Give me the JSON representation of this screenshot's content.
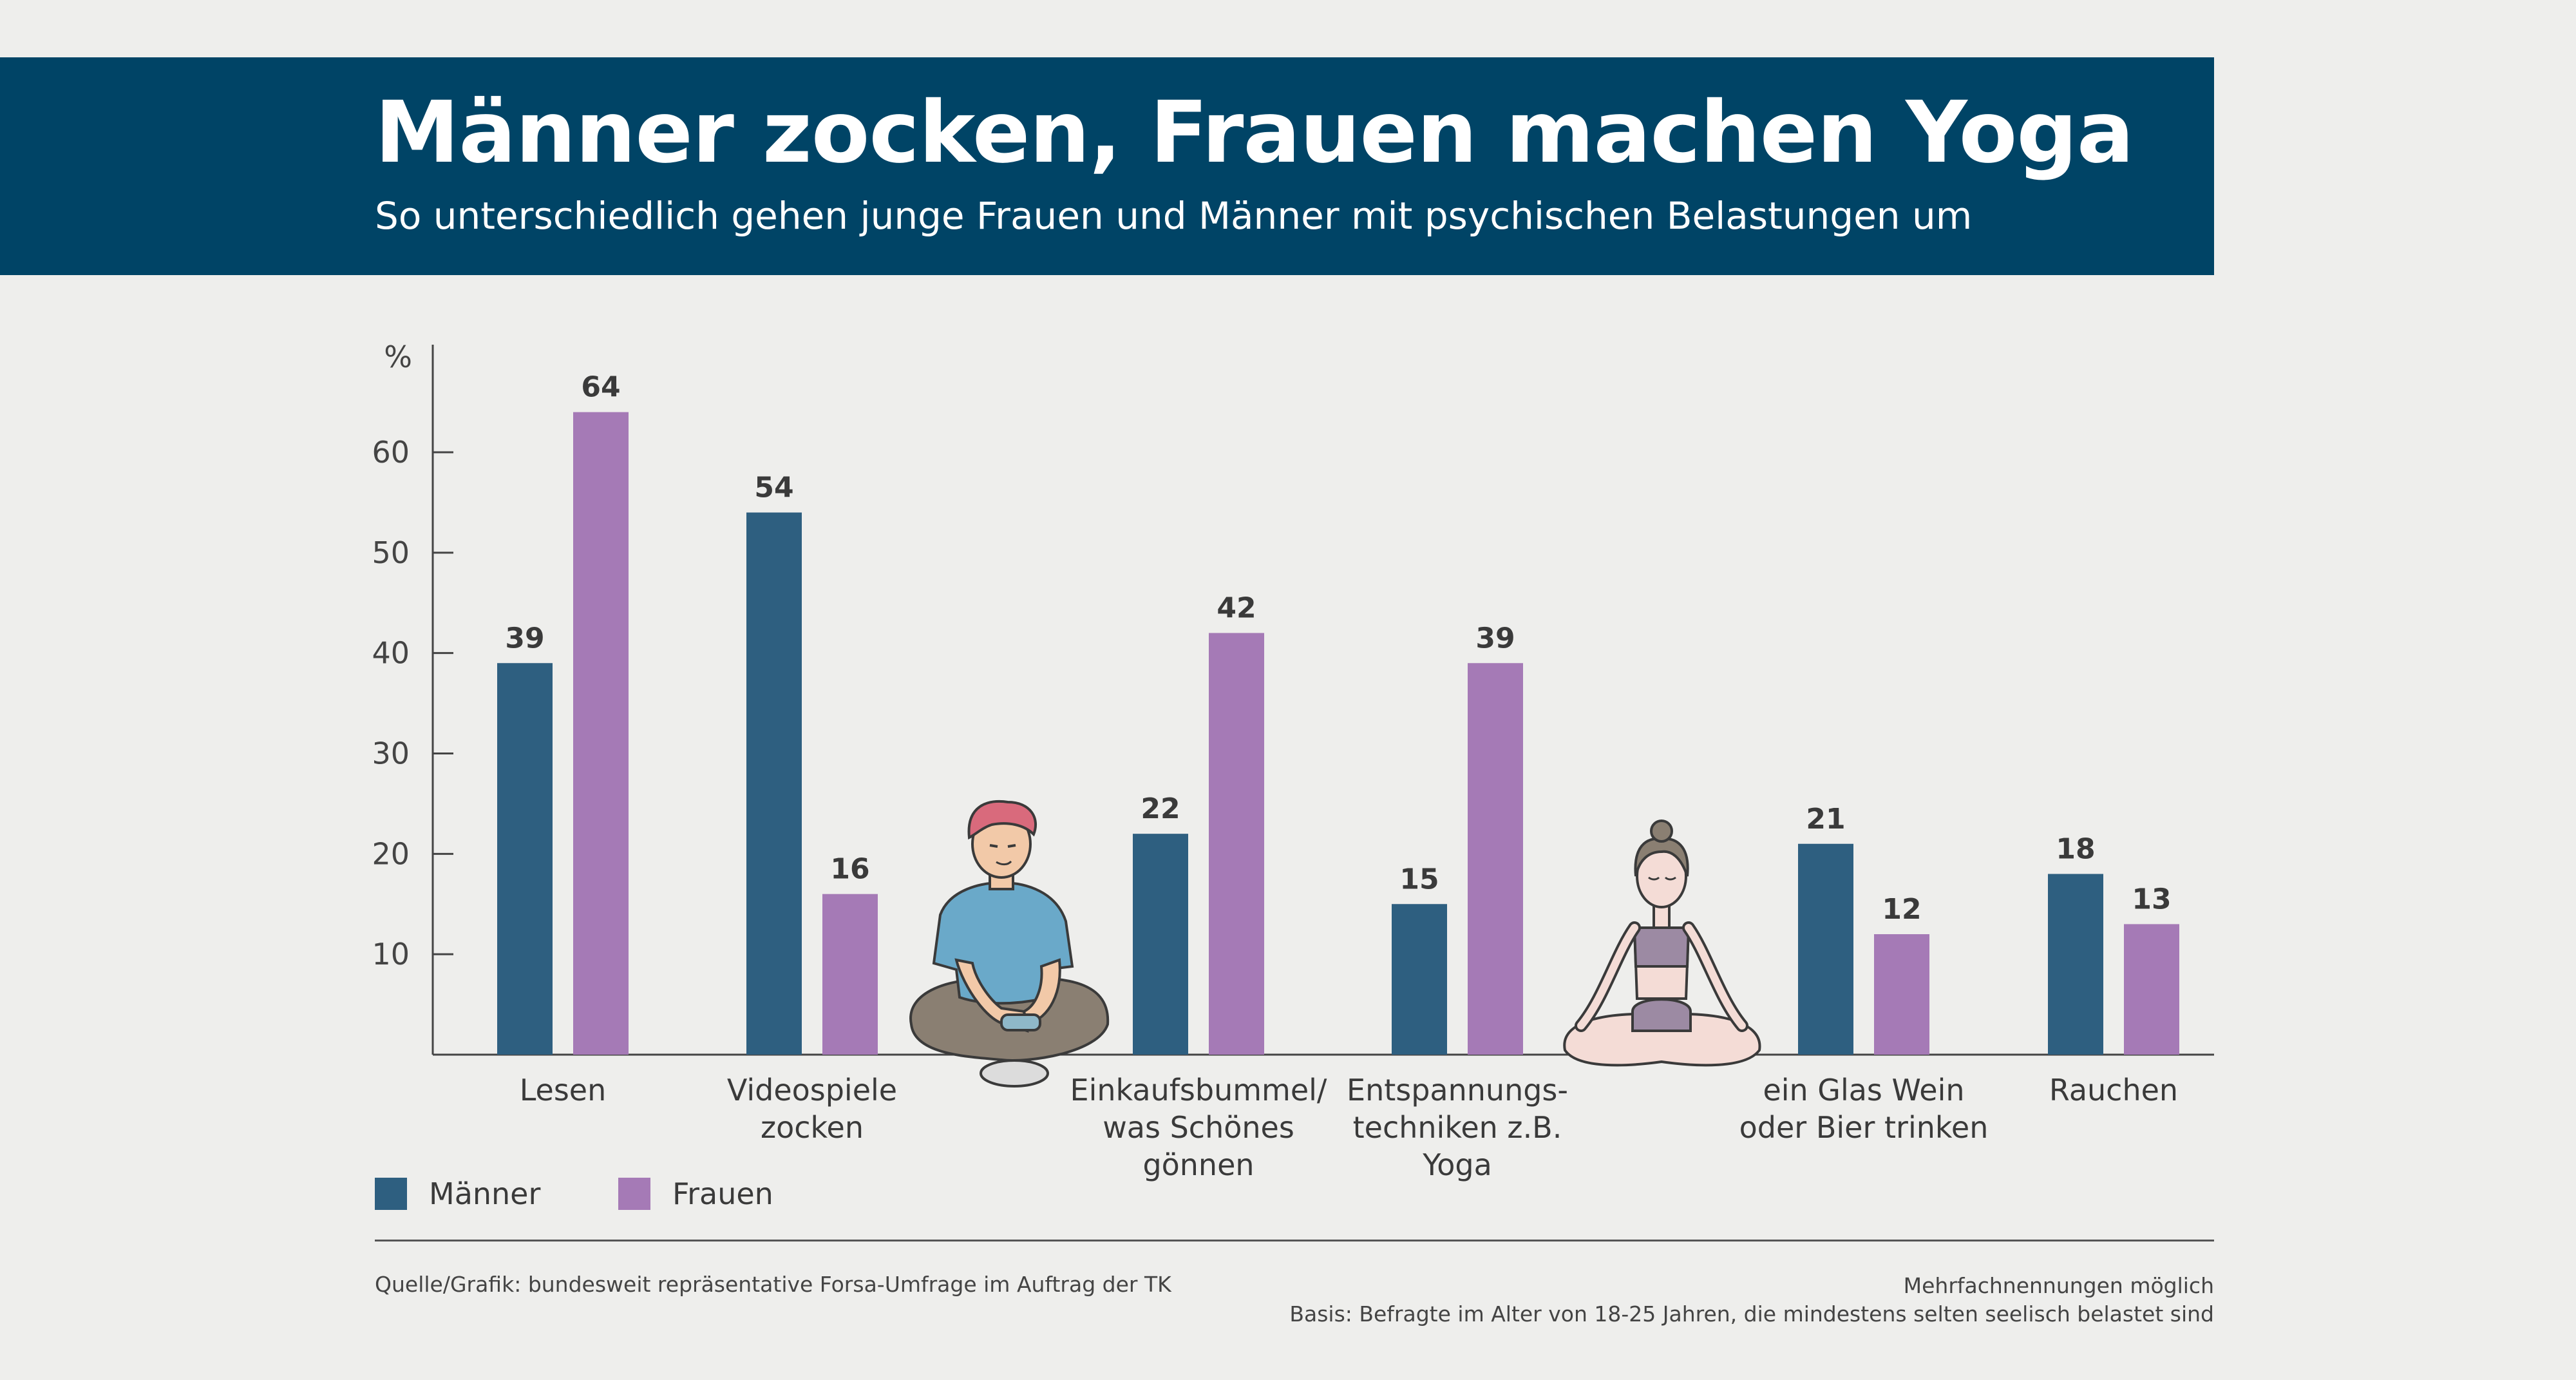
{
  "header": {
    "title": "Männer zocken, Frauen machen Yoga",
    "subtitle": "So unterschiedlich gehen junge Frauen und Männer mit psychischen Belastungen um"
  },
  "chart_data": {
    "type": "bar",
    "unit_label": "%",
    "categories": [
      [
        "Lesen"
      ],
      [
        "Videospiele",
        "zocken"
      ],
      [
        "Einkaufsbummel/",
        "was Schönes",
        "gönnen"
      ],
      [
        "Entspannungs-",
        "techniken z.B.",
        "Yoga"
      ],
      [
        "ein Glas Wein",
        "oder Bier trinken"
      ],
      [
        "Rauchen"
      ]
    ],
    "series": [
      {
        "name": "Männer",
        "color": "#2e5f80",
        "values": [
          39,
          54,
          22,
          15,
          21,
          18
        ]
      },
      {
        "name": "Frauen",
        "color": "#a57ab6",
        "values": [
          64,
          16,
          42,
          39,
          12,
          13
        ]
      }
    ],
    "yticks": [
      10,
      20,
      30,
      40,
      50,
      60
    ],
    "ylim": [
      0,
      69
    ],
    "grid": false,
    "legend_position": "bottom-left",
    "illustrations": [
      "gamer-illustration",
      "yoga-illustration"
    ]
  },
  "footer": {
    "source": "Quelle/Grafik: bundesweit repräsentative Forsa-Umfrage im Auftrag der TK",
    "note_line1": "Mehrfachnennungen möglich",
    "note_line2": "Basis: Befragte im Alter von 18-25 Jahren, die mindestens selten seelisch belastet sind"
  }
}
